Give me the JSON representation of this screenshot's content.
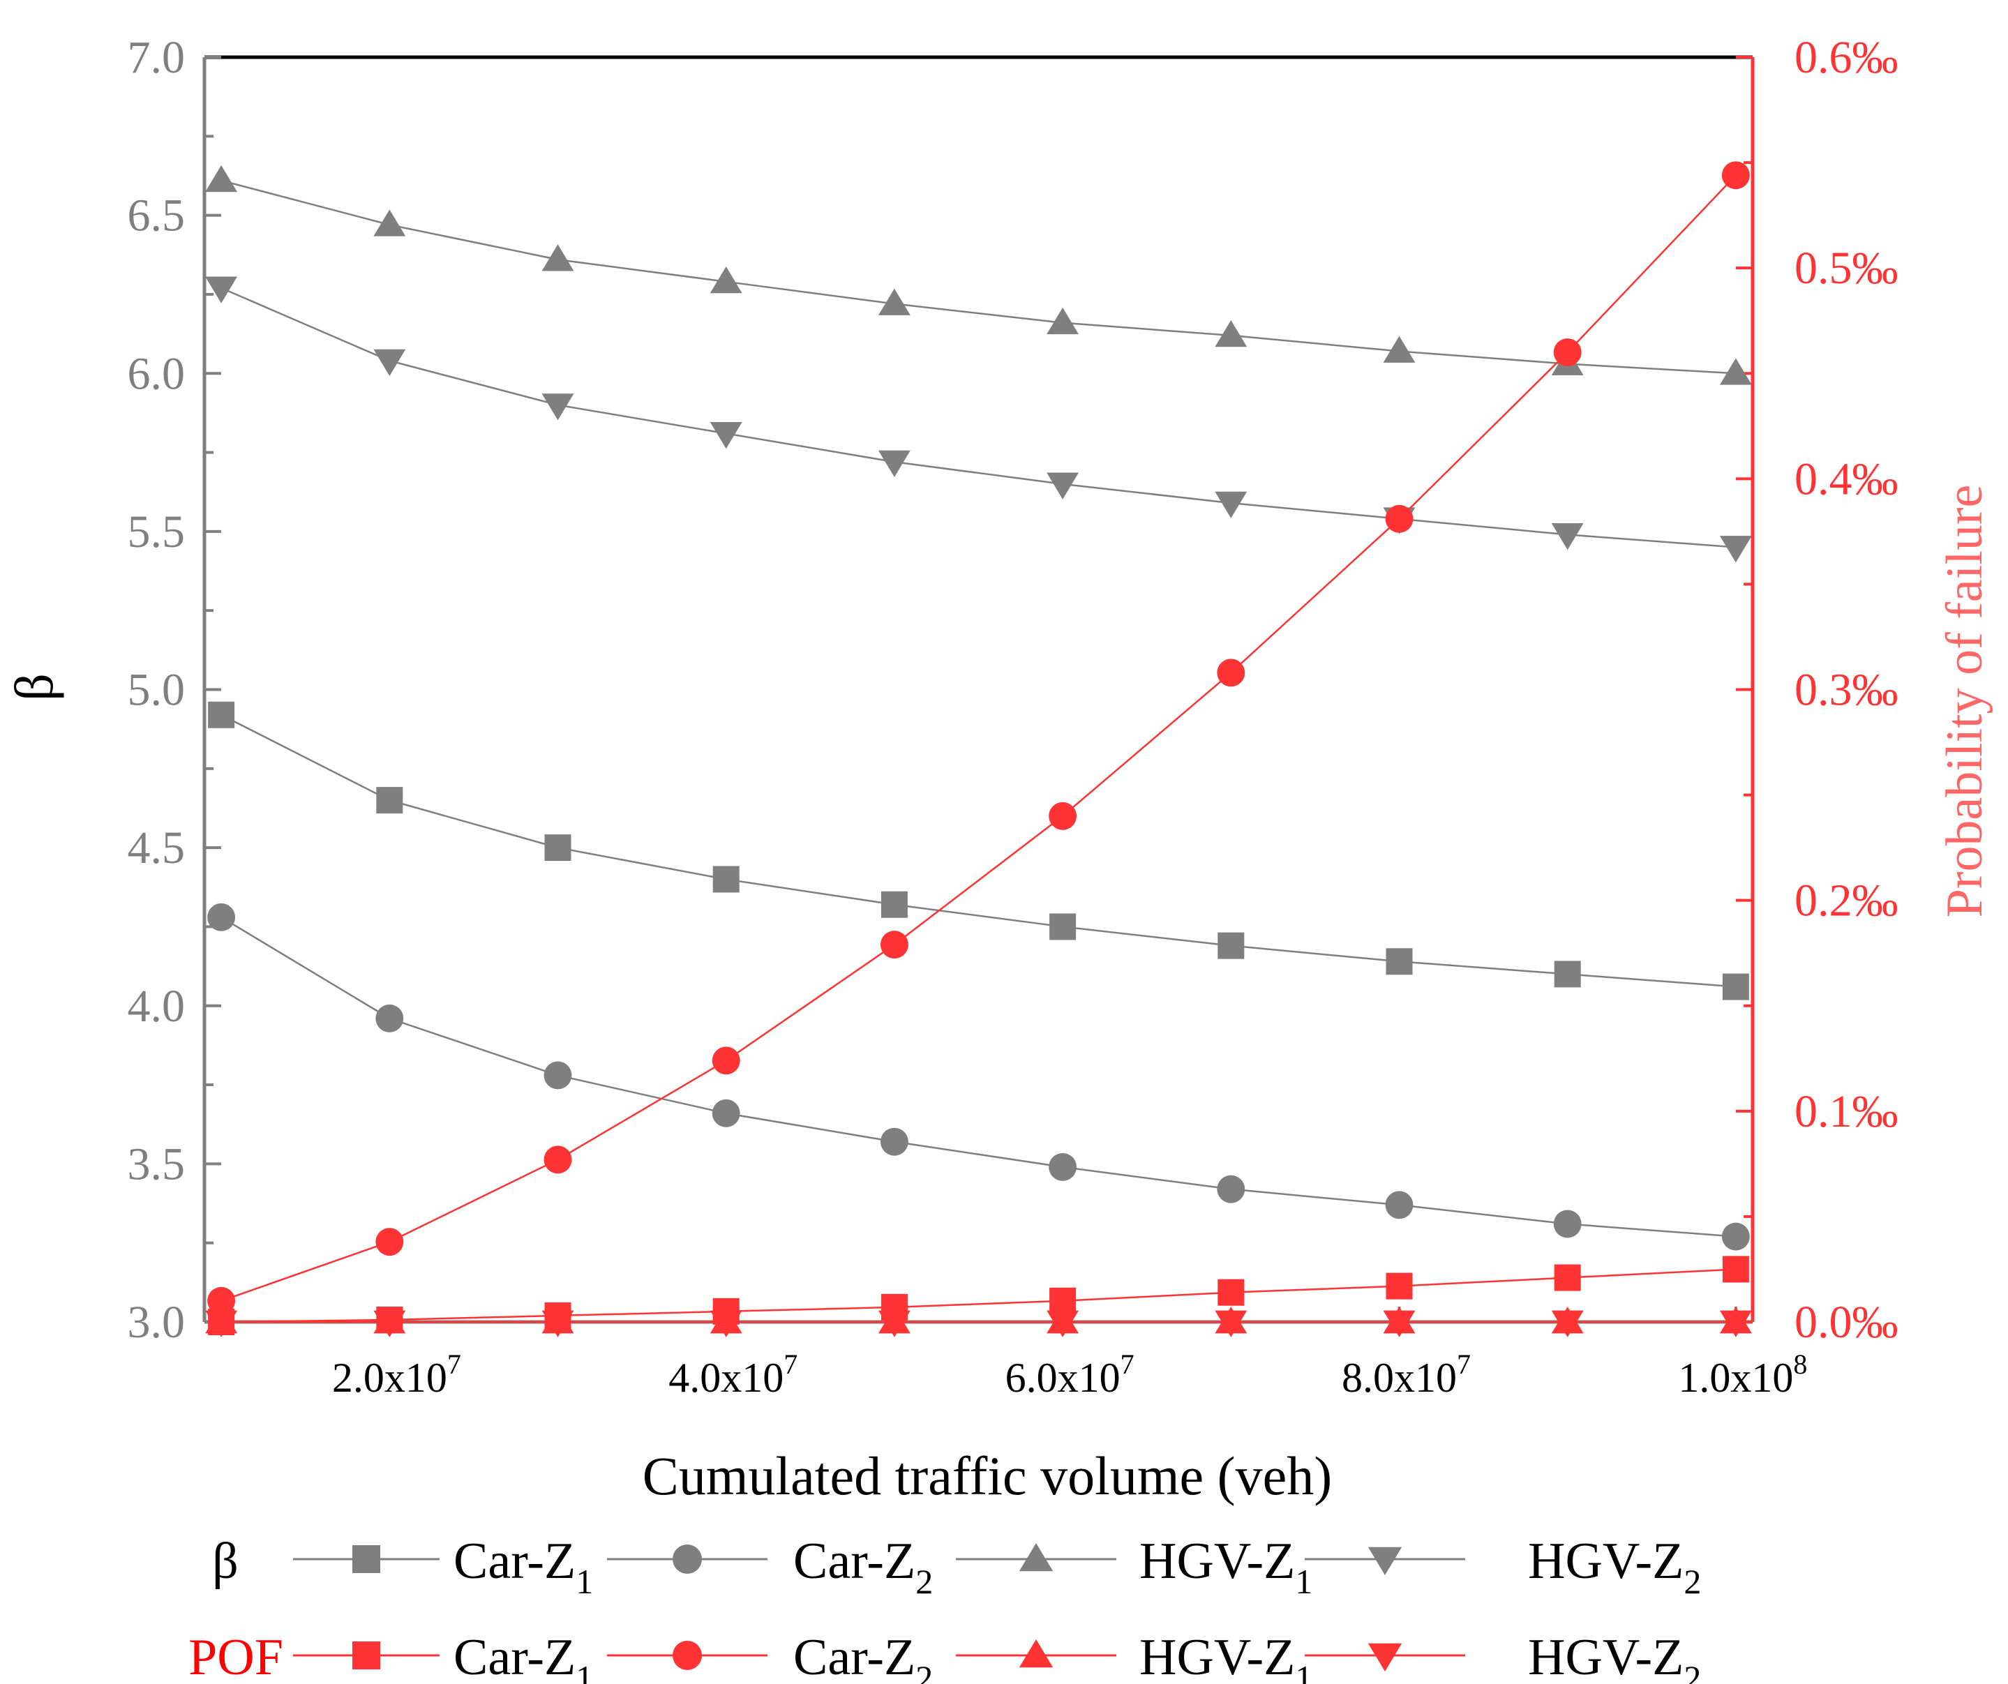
{
  "chart_data": {
    "type": "line",
    "x_axis": {
      "label": "Cumulated traffic volume (veh)",
      "range": [
        9000000.0,
        101000000.0
      ],
      "ticks": [
        {
          "value": 20000000.0,
          "mantissa": "2.0x10",
          "exponent": "7"
        },
        {
          "value": 40000000.0,
          "mantissa": "4.0x10",
          "exponent": "7"
        },
        {
          "value": 60000000.0,
          "mantissa": "6.0x10",
          "exponent": "7"
        },
        {
          "value": 80000000.0,
          "mantissa": "8.0x10",
          "exponent": "7"
        },
        {
          "value": 100000000.0,
          "mantissa": "1.0x10",
          "exponent": "8"
        }
      ]
    },
    "y_left": {
      "label": "β",
      "range": [
        3.0,
        7.0
      ],
      "ticks": [
        "3.0",
        "3.5",
        "4.0",
        "4.5",
        "5.0",
        "5.5",
        "6.0",
        "6.5",
        "7.0"
      ],
      "color": "#7f7f7f"
    },
    "y_right": {
      "label": "Probability of failure",
      "range": [
        0,
        0.6
      ],
      "ticks": [
        "0.0‰",
        "0.1‰",
        "0.2‰",
        "0.3‰",
        "0.4‰",
        "0.5‰",
        "0.6‰"
      ],
      "color": "#ff3333"
    },
    "x": [
      10000000.0,
      20000000.0,
      30000000.0,
      40000000.0,
      50000000.0,
      60000000.0,
      70000000.0,
      80000000.0,
      90000000.0,
      100000000.0
    ],
    "beta_series": [
      {
        "name": "Car-Z",
        "sub": "1",
        "marker": "square",
        "values": [
          4.92,
          4.65,
          4.5,
          4.4,
          4.32,
          4.25,
          4.19,
          4.14,
          4.1,
          4.06
        ]
      },
      {
        "name": "Car-Z",
        "sub": "2",
        "marker": "circle",
        "values": [
          4.28,
          3.96,
          3.78,
          3.66,
          3.57,
          3.49,
          3.42,
          3.37,
          3.31,
          3.27
        ]
      },
      {
        "name": "HGV-Z",
        "sub": "1",
        "marker": "triangle-up",
        "values": [
          6.61,
          6.47,
          6.36,
          6.29,
          6.22,
          6.16,
          6.12,
          6.07,
          6.03,
          6.0
        ]
      },
      {
        "name": "HGV-Z",
        "sub": "2",
        "marker": "triangle-down",
        "values": [
          6.27,
          6.04,
          5.9,
          5.81,
          5.72,
          5.65,
          5.59,
          5.54,
          5.49,
          5.45
        ]
      }
    ],
    "pof_series": [
      {
        "name": "Car-Z",
        "sub": "1",
        "marker": "square",
        "values": [
          0.0,
          0.001,
          0.003,
          0.005,
          0.007,
          0.01,
          0.014,
          0.017,
          0.021,
          0.025
        ]
      },
      {
        "name": "Car-Z",
        "sub": "2",
        "marker": "circle",
        "values": [
          0.01,
          0.038,
          0.077,
          0.124,
          0.179,
          0.24,
          0.308,
          0.381,
          0.46,
          0.544
        ]
      },
      {
        "name": "HGV-Z",
        "sub": "1",
        "marker": "triangle-up",
        "values": [
          0,
          0,
          0,
          0,
          0,
          0,
          0,
          0,
          0,
          0
        ]
      },
      {
        "name": "HGV-Z",
        "sub": "2",
        "marker": "triangle-down",
        "values": [
          0,
          0,
          0,
          0,
          0,
          0,
          0,
          0,
          0,
          0
        ]
      }
    ],
    "legend": {
      "beta_label": "β",
      "pof_label": "POF",
      "placement": "bottom"
    },
    "colors": {
      "beta": "#7f7f7f",
      "pof": "#ff3333",
      "pof_label": "#ff0000",
      "axis": "#7f7f7f",
      "frame_top": "#000000",
      "text_dark": "#000000"
    }
  }
}
